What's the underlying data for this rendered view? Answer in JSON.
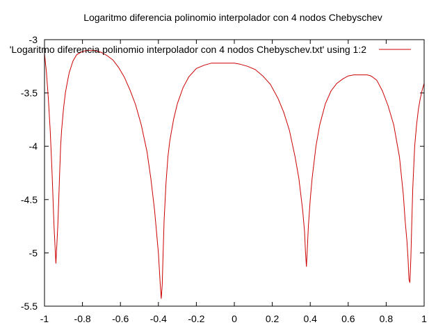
{
  "chart_data": {
    "type": "line",
    "title": "Logaritmo diferencia polinomio interpolador con 4 nodos Chebyschev",
    "xlabel": "",
    "ylabel": "",
    "xlim": [
      -1,
      1
    ],
    "ylim": [
      -5.5,
      -3
    ],
    "xticks": [
      -1,
      -0.8,
      -0.6,
      -0.4,
      -0.2,
      0,
      0.2,
      0.4,
      0.6,
      0.8,
      1
    ],
    "xtick_labels": [
      "-1",
      "-0.8",
      "-0.6",
      "-0.4",
      "-0.2",
      "0",
      "0.2",
      "0.4",
      "0.6",
      "0.8",
      "1"
    ],
    "yticks": [
      -5.5,
      -5,
      -4.5,
      -4,
      -3.5,
      -3
    ],
    "ytick_labels": [
      "-5.5",
      "-5",
      "-4.5",
      "-4",
      "-3.5",
      "-3"
    ],
    "grid": false,
    "legend_position": "top-right",
    "series": [
      {
        "name": "'Logaritmo diferencia polinomio interpolador con 4 nodos Chebyschev.txt' using 1:2",
        "color": "#cc0000",
        "x": [
          -1.0,
          -0.99,
          -0.98,
          -0.97,
          -0.96,
          -0.95,
          -0.94,
          -0.93,
          -0.925,
          -0.92,
          -0.915,
          -0.91,
          -0.9,
          -0.89,
          -0.88,
          -0.87,
          -0.85,
          -0.83,
          -0.8,
          -0.77,
          -0.74,
          -0.72,
          -0.7,
          -0.67,
          -0.64,
          -0.61,
          -0.58,
          -0.55,
          -0.52,
          -0.49,
          -0.46,
          -0.44,
          -0.42,
          -0.4,
          -0.39,
          -0.385,
          -0.38,
          -0.375,
          -0.37,
          -0.36,
          -0.35,
          -0.34,
          -0.32,
          -0.3,
          -0.27,
          -0.24,
          -0.2,
          -0.16,
          -0.12,
          -0.08,
          -0.04,
          -0.01,
          0.0,
          0.03,
          0.07,
          0.11,
          0.15,
          0.19,
          0.23,
          0.26,
          0.29,
          0.32,
          0.34,
          0.36,
          0.37,
          0.375,
          0.38,
          0.385,
          0.39,
          0.4,
          0.41,
          0.43,
          0.45,
          0.48,
          0.51,
          0.54,
          0.57,
          0.6,
          0.63,
          0.66,
          0.69,
          0.7,
          0.72,
          0.75,
          0.78,
          0.81,
          0.84,
          0.87,
          0.89,
          0.9,
          0.91,
          0.915,
          0.92,
          0.925,
          0.93,
          0.935,
          0.94,
          0.95,
          0.96,
          0.97,
          0.98,
          0.99,
          1.0
        ],
        "y": [
          -3.13,
          -3.3,
          -3.55,
          -3.85,
          -4.25,
          -4.75,
          -5.1,
          -4.75,
          -4.5,
          -4.25,
          -4.0,
          -3.85,
          -3.65,
          -3.5,
          -3.4,
          -3.31,
          -3.2,
          -3.14,
          -3.11,
          -3.1,
          -3.1,
          -3.11,
          -3.12,
          -3.15,
          -3.19,
          -3.26,
          -3.35,
          -3.47,
          -3.61,
          -3.8,
          -4.05,
          -4.3,
          -4.6,
          -5.0,
          -5.3,
          -5.43,
          -5.3,
          -5.0,
          -4.7,
          -4.35,
          -4.1,
          -3.95,
          -3.75,
          -3.6,
          -3.45,
          -3.35,
          -3.27,
          -3.24,
          -3.22,
          -3.22,
          -3.22,
          -3.22,
          -3.22,
          -3.23,
          -3.25,
          -3.28,
          -3.34,
          -3.42,
          -3.55,
          -3.68,
          -3.85,
          -4.1,
          -4.3,
          -4.6,
          -4.8,
          -5.0,
          -5.13,
          -4.95,
          -4.75,
          -4.5,
          -4.3,
          -4.0,
          -3.8,
          -3.6,
          -3.48,
          -3.41,
          -3.37,
          -3.34,
          -3.33,
          -3.33,
          -3.33,
          -3.33,
          -3.34,
          -3.38,
          -3.48,
          -3.62,
          -3.8,
          -4.1,
          -4.45,
          -4.7,
          -4.9,
          -5.05,
          -5.25,
          -5.28,
          -5.05,
          -4.7,
          -4.4,
          -4.0,
          -3.8,
          -3.65,
          -3.55,
          -3.47,
          -3.41
        ]
      }
    ]
  }
}
